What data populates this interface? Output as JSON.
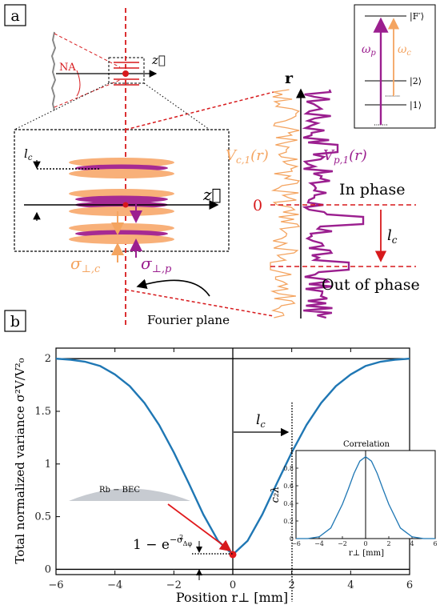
{
  "panel_a": {
    "label": "a",
    "na_label": "NA",
    "z_label": "z⃗",
    "r_label": "r",
    "lc_label": "l",
    "lc_sub": "c",
    "sigma_c_label": "σ",
    "sigma_c_sub": "⊥,c",
    "sigma_p_label": "σ",
    "sigma_p_sub": "⊥,p",
    "vc_label": "V",
    "vc_sub": "c,1",
    "vc_arg": "(r)",
    "vp_label": "V",
    "vp_sub": "p,1",
    "vp_arg": "(r)",
    "zero_label": "0",
    "in_phase": "In phase",
    "out_of_phase": "Out of phase",
    "fourier_plane": "Fourier plane",
    "levels": {
      "f_prime": "|F′⟩",
      "two": "|2⟩",
      "one": "|1⟩",
      "omega_p": "ω",
      "omega_p_sub": "p",
      "omega_c": "ω",
      "omega_c_sub": "c"
    },
    "colors": {
      "red": "#d7191c",
      "probe": "#9b1f8f",
      "coupling": "#f4a460",
      "dashed": "#d7191c"
    }
  },
  "panel_b": {
    "label": "b",
    "bec_label": "Rb − BEC",
    "lc_label": "l",
    "lc_sub": "c",
    "floor_label": "1 − e",
    "floor_exp": "−σ",
    "floor_exp_sub": "Δφ",
    "floor_exp_sup": "2"
  },
  "chart_data": [
    {
      "type": "line",
      "title": "",
      "xlabel": "Position r⊥ [mm]",
      "ylabel": "Total normalized variance σ²V/V²₀",
      "xlim": [
        -6,
        6
      ],
      "ylim": [
        -0.05,
        2.1
      ],
      "xticks": [
        -6,
        -4,
        -2,
        0,
        2,
        4,
        6
      ],
      "yticks": [
        0,
        0.5,
        1,
        1.5,
        2
      ],
      "ytick_labels": [
        "0",
        "0.5",
        "1",
        "1.5",
        "2"
      ],
      "grid": false,
      "color": "#1f77b4",
      "series": [
        {
          "x": [
            -6,
            -5.5,
            -5,
            -4.5,
            -4,
            -3.5,
            -3,
            -2.5,
            -2,
            -1.5,
            -1,
            -0.5,
            0,
            0.5,
            1,
            1.5,
            2,
            2.5,
            3,
            3.5,
            4,
            4.5,
            5,
            5.5,
            6
          ],
          "y": [
            2.0,
            1.99,
            1.97,
            1.93,
            1.85,
            1.74,
            1.58,
            1.37,
            1.11,
            0.82,
            0.52,
            0.27,
            0.14,
            0.27,
            0.52,
            0.82,
            1.11,
            1.37,
            1.58,
            1.74,
            1.85,
            1.93,
            1.97,
            1.99,
            2.0
          ]
        }
      ],
      "reference_lines": [
        2,
        0
      ],
      "marker": {
        "x": 0,
        "y": 0.14
      },
      "annotations": [
        "l_c at x = 2",
        "Rb − BEC"
      ]
    },
    {
      "type": "line",
      "title": "Correlation",
      "xlabel": "r⊥ [mm]",
      "ylabel": "c₂λ",
      "xlim": [
        -6,
        6
      ],
      "ylim": [
        0,
        1
      ],
      "xticks": [
        -6,
        -4,
        -2,
        0,
        2,
        4,
        6
      ],
      "yticks": [
        0,
        0.2,
        0.4,
        0.6,
        0.8,
        1
      ],
      "ytick_labels": [
        "0",
        "0.2",
        "0.4",
        "0.6",
        "0.8",
        "1"
      ],
      "color": "#1f77b4",
      "series": [
        {
          "x": [
            -6,
            -5,
            -4,
            -3,
            -2,
            -1.5,
            -1,
            -0.5,
            0,
            0.5,
            1,
            1.5,
            2,
            3,
            4,
            5,
            6
          ],
          "y": [
            0.0,
            0.0,
            0.02,
            0.12,
            0.39,
            0.56,
            0.74,
            0.88,
            0.93,
            0.88,
            0.74,
            0.56,
            0.39,
            0.12,
            0.02,
            0.0,
            0.0
          ]
        }
      ]
    }
  ]
}
